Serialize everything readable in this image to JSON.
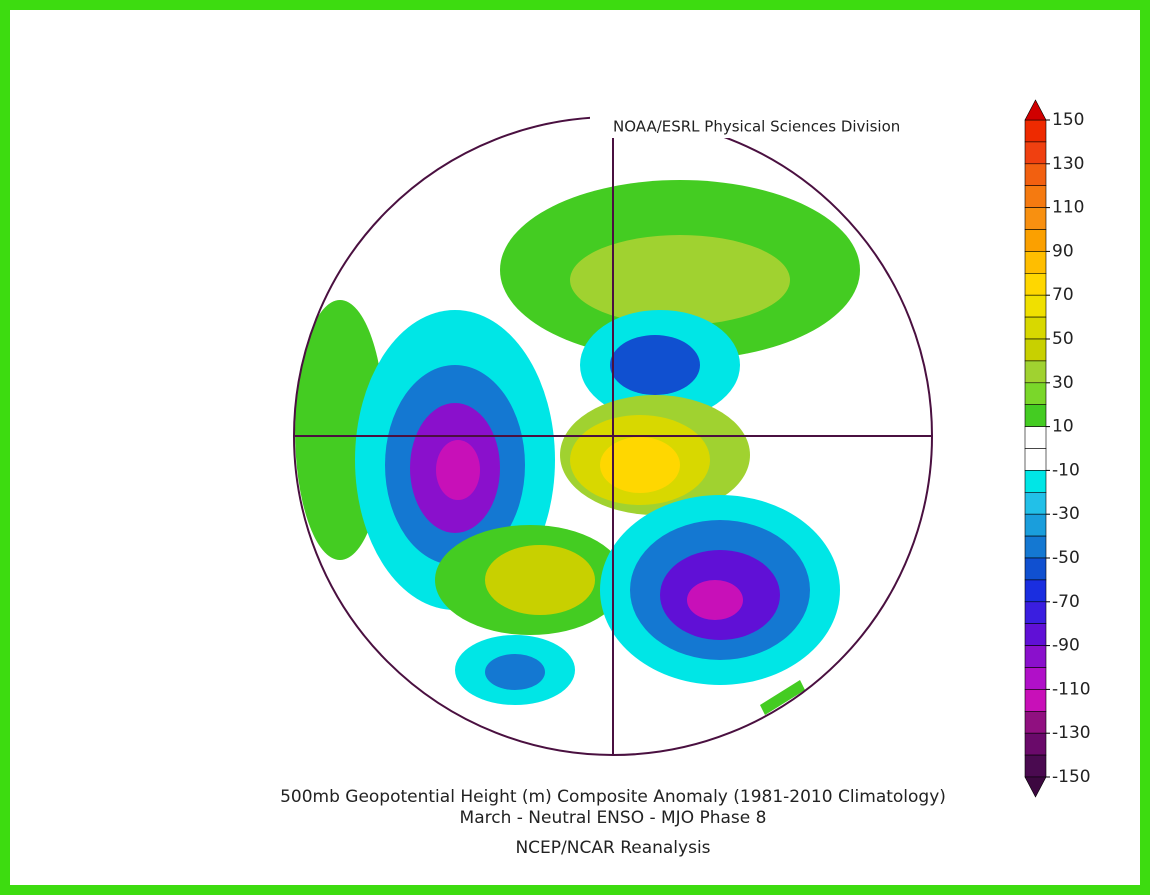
{
  "header": {
    "credit": "NOAA/ESRL Physical Sciences Division"
  },
  "footer": {
    "title": "500mb Geopotential Height (m) Composite Anomaly (1981-2010 Climatology)",
    "subtitle": "March - Neutral ENSO - MJO Phase 8",
    "source": "NCEP/NCAR Reanalysis"
  },
  "colorbar": {
    "levels": [
      150,
      130,
      110,
      90,
      70,
      50,
      30,
      10,
      -10,
      -30,
      -50,
      -70,
      -90,
      -110,
      -130,
      -150
    ],
    "colors": [
      "#ee2a00",
      "#f04010",
      "#f26010",
      "#f57a10",
      "#f89010",
      "#fba000",
      "#ffbe00",
      "#ffd700",
      "#f0e000",
      "#d8d800",
      "#c8d000",
      "#a0d230",
      "#7ad72a",
      "#44cc22",
      "#ffffff",
      "#ffffff",
      "#00e6e6",
      "#22c0e8",
      "#1a9edc",
      "#1478d2",
      "#1050d0",
      "#1a2ee0",
      "#3a1ee0",
      "#6010d6",
      "#8a10cc",
      "#b010c8",
      "#c810b8",
      "#901080",
      "#6a0a6a",
      "#4a0a50"
    ],
    "over_color": "#d00000",
    "under_color": "#3c0840"
  }
}
